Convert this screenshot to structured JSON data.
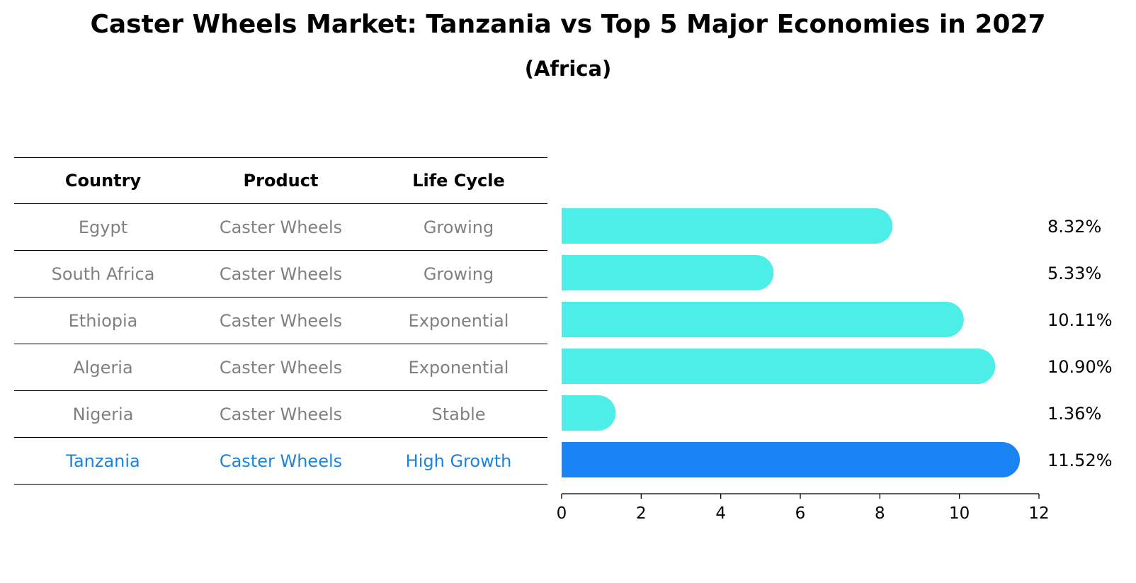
{
  "chart_data": {
    "type": "bar",
    "orientation": "horizontal",
    "title": "Caster Wheels Market: Tanzania vs Top 5 Major Economies in 2027",
    "subtitle": "(Africa)",
    "table": {
      "headers": [
        "Country",
        "Product",
        "Life Cycle"
      ],
      "rows": [
        [
          "Egypt",
          "Caster Wheels",
          "Growing"
        ],
        [
          "South Africa",
          "Caster Wheels",
          "Growing"
        ],
        [
          "Ethiopia",
          "Caster Wheels",
          "Exponential"
        ],
        [
          "Algeria",
          "Caster Wheels",
          "Exponential"
        ],
        [
          "Nigeria",
          "Caster Wheels",
          "Stable"
        ],
        [
          "Tanzania",
          "Caster Wheels",
          "High Growth"
        ]
      ],
      "highlight_row": 5
    },
    "categories": [
      "Egypt",
      "South Africa",
      "Ethiopia",
      "Algeria",
      "Nigeria",
      "Tanzania"
    ],
    "values": [
      8.32,
      5.33,
      10.11,
      10.9,
      1.36,
      11.52
    ],
    "value_labels": [
      "8.32%",
      "5.33%",
      "10.11%",
      "10.90%",
      "1.36%",
      "11.52%"
    ],
    "xlim": [
      0,
      12
    ],
    "xticks": [
      0,
      2,
      4,
      6,
      8,
      10,
      12
    ],
    "colors": {
      "bar": "#4eeee8",
      "highlight": "#1a84f5",
      "highlight_text": "#1a84e0",
      "muted_text": "#808080"
    }
  }
}
